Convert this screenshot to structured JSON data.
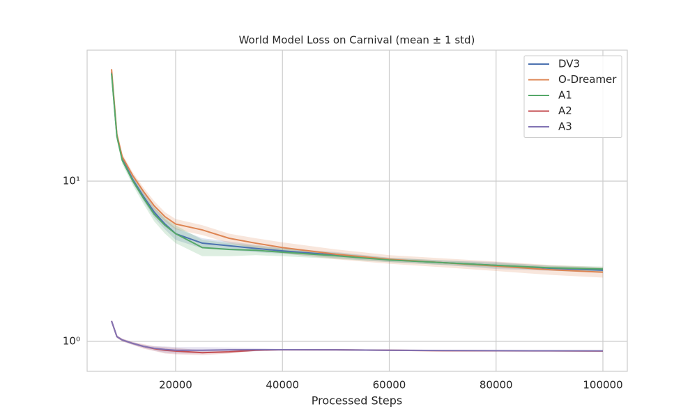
{
  "chart_data": {
    "type": "line",
    "title": "World Model Loss on Carnival (mean ± 1 std)",
    "xlabel": "Processed Steps",
    "x": [
      8000,
      9000,
      10000,
      12000,
      14000,
      16000,
      18000,
      20000,
      25000,
      30000,
      35000,
      40000,
      50000,
      60000,
      70000,
      80000,
      90000,
      100000
    ],
    "series": [
      {
        "name": "DV3",
        "color": "#4c72b0",
        "values": [
          48,
          19.2,
          13.8,
          10.2,
          8.0,
          6.4,
          5.4,
          4.7,
          4.1,
          3.95,
          3.8,
          3.67,
          3.46,
          3.23,
          3.1,
          2.98,
          2.86,
          2.78
        ],
        "std": [
          2,
          1,
          0.6,
          0.5,
          0.5,
          0.5,
          0.4,
          0.4,
          0.3,
          0.25,
          0.2,
          0.15,
          0.15,
          0.1,
          0.1,
          0.15,
          0.1,
          0.1
        ]
      },
      {
        "name": "O-Dreamer",
        "color": "#dd8452",
        "values": [
          50,
          19.6,
          14.2,
          10.8,
          8.6,
          7.0,
          6.0,
          5.4,
          4.96,
          4.4,
          4.1,
          3.85,
          3.5,
          3.25,
          3.1,
          2.95,
          2.8,
          2.7
        ],
        "std": [
          2,
          1,
          0.6,
          0.5,
          0.5,
          0.5,
          0.4,
          0.4,
          0.35,
          0.3,
          0.3,
          0.3,
          0.25,
          0.2,
          0.2,
          0.2,
          0.2,
          0.2
        ]
      },
      {
        "name": "A1",
        "color": "#55a868",
        "values": [
          47,
          19,
          13.5,
          10.0,
          7.8,
          6.2,
          5.3,
          4.7,
          3.85,
          3.75,
          3.7,
          3.6,
          3.42,
          3.22,
          3.1,
          2.98,
          2.88,
          2.83
        ],
        "std": [
          2,
          1,
          0.7,
          0.6,
          0.6,
          0.6,
          0.6,
          0.6,
          0.45,
          0.35,
          0.25,
          0.2,
          0.15,
          0.1,
          0.1,
          0.1,
          0.1,
          0.1
        ]
      },
      {
        "name": "A2",
        "color": "#c44e52",
        "values": [
          1.34,
          1.07,
          1.02,
          0.97,
          0.93,
          0.9,
          0.88,
          0.87,
          0.85,
          0.86,
          0.88,
          0.887,
          0.885,
          0.88,
          0.875,
          0.873,
          0.872,
          0.87
        ],
        "std": [
          0.02,
          0.02,
          0.02,
          0.02,
          0.03,
          0.03,
          0.04,
          0.04,
          0.03,
          0.02,
          0.01,
          0.01,
          0.01,
          0.01,
          0.01,
          0.01,
          0.01,
          0.01
        ]
      },
      {
        "name": "A3",
        "color": "#8172b3",
        "values": [
          1.34,
          1.07,
          1.02,
          0.97,
          0.93,
          0.905,
          0.89,
          0.88,
          0.88,
          0.885,
          0.887,
          0.887,
          0.885,
          0.88,
          0.877,
          0.875,
          0.873,
          0.872
        ],
        "std": [
          0.02,
          0.02,
          0.02,
          0.02,
          0.02,
          0.03,
          0.04,
          0.04,
          0.04,
          0.03,
          0.02,
          0.01,
          0.01,
          0.01,
          0.01,
          0.01,
          0.01,
          0.01
        ]
      }
    ],
    "xlim": [
      3426,
      104568
    ],
    "ylim": [
      0.65,
      65.7
    ],
    "log_y": true,
    "xticks": [
      20000,
      40000,
      60000,
      80000,
      100000
    ],
    "yticks": [
      {
        "value": 1,
        "label": "10⁰"
      },
      {
        "value": 10,
        "label": "10¹"
      }
    ],
    "grid": true,
    "legend": "upper right"
  }
}
